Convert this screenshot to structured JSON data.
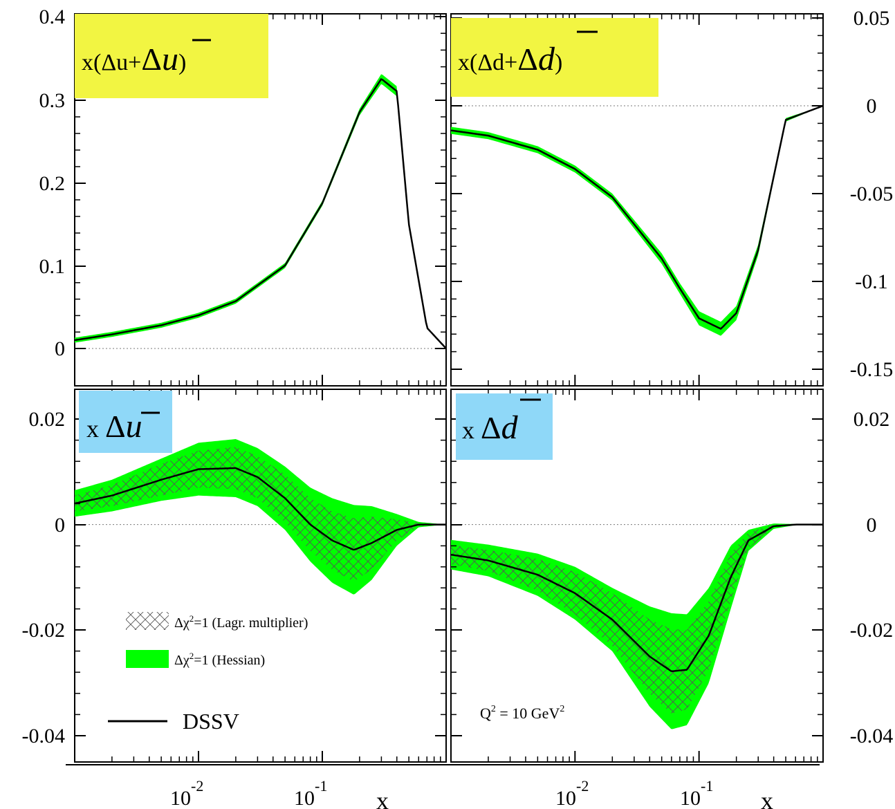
{
  "colors": {
    "hessian_band": "#00ff00",
    "label_yellow": "#f2f542",
    "label_blue": "#8fd8f8",
    "curve": "#000000"
  },
  "legend": {
    "lagr": "Δχ²=1 (Lagr. multiplier)",
    "lagr_prefix": "Δχ",
    "lagr_sup": "2",
    "lagr_suffix": "=1 (Lagr. multiplier)",
    "hess_prefix": "Δχ",
    "hess_sup": "2",
    "hess_suffix": "=1 (Hessian)",
    "dssv": "DSSV"
  },
  "annotation": {
    "q2_prefix": "Q",
    "q2_sup1": "2",
    "q2_mid": " = 10 GeV",
    "q2_sup2": "2"
  },
  "x_axis": {
    "title": "x",
    "tick_10_base": "10",
    "tick_minus2": "-2",
    "tick_minus1": "-1",
    "scale": "log",
    "range": [
      0.001,
      1
    ]
  },
  "chart_data": [
    {
      "type": "line",
      "panel": "top-left",
      "label": "x(Δu+Δū)",
      "label_parts": {
        "pre": "x(Δu+",
        "delta": "Δ",
        "q": "u",
        "post": ")"
      },
      "y_ticks": [
        "0.4",
        "0.3",
        "0.2",
        "0.1",
        "0"
      ],
      "ylim": [
        -0.045,
        0.4
      ],
      "x_scale": "log",
      "series": [
        {
          "name": "DSSV",
          "x": [
            0.001,
            0.002,
            0.005,
            0.01,
            0.02,
            0.05,
            0.1,
            0.2,
            0.3,
            0.4,
            0.5,
            0.7,
            1.0
          ],
          "y": [
            0.01,
            0.017,
            0.028,
            0.04,
            0.057,
            0.1,
            0.175,
            0.285,
            0.325,
            0.31,
            0.15,
            0.025,
            0.0
          ]
        }
      ],
      "band_halfwidth": [
        0.003,
        0.003,
        0.003,
        0.003,
        0.003,
        0.003,
        0.003,
        0.004,
        0.006,
        0.006,
        0.004,
        0.001,
        0.0
      ]
    },
    {
      "type": "line",
      "panel": "top-right",
      "label": "x(Δd+Δd̄)",
      "label_parts": {
        "pre": "x(Δd+",
        "delta": "Δ",
        "q": "d",
        "post": ")"
      },
      "y_ticks": [
        "0.05",
        "0",
        "-0.05",
        "-0.1",
        "-0.15"
      ],
      "ylim": [
        -0.155,
        0.05
      ],
      "x_scale": "log",
      "series": [
        {
          "name": "DSSV",
          "x": [
            0.001,
            0.002,
            0.005,
            0.01,
            0.02,
            0.05,
            0.07,
            0.1,
            0.15,
            0.2,
            0.3,
            0.5,
            1.0
          ],
          "y": [
            -0.014,
            -0.017,
            -0.025,
            -0.036,
            -0.052,
            -0.087,
            -0.104,
            -0.121,
            -0.127,
            -0.118,
            -0.082,
            -0.008,
            0.0
          ]
        }
      ],
      "band_halfwidth": [
        0.002,
        0.002,
        0.002,
        0.002,
        0.002,
        0.003,
        0.003,
        0.004,
        0.004,
        0.004,
        0.003,
        0.001,
        0.0
      ]
    },
    {
      "type": "line",
      "panel": "bottom-left",
      "label": "x Δū",
      "label_parts": {
        "pre": "x ",
        "delta": "Δ",
        "q": "u"
      },
      "y_ticks": [
        "0.02",
        "0",
        "-0.02",
        "-0.04"
      ],
      "ylim": [
        -0.045,
        0.025
      ],
      "x_scale": "log",
      "series": [
        {
          "name": "DSSV",
          "x": [
            0.001,
            0.002,
            0.005,
            0.01,
            0.02,
            0.03,
            0.05,
            0.08,
            0.12,
            0.18,
            0.25,
            0.4,
            0.6,
            1.0
          ],
          "y": [
            0.004,
            0.0055,
            0.0085,
            0.0105,
            0.0107,
            0.009,
            0.005,
            0.0,
            -0.003,
            -0.0048,
            -0.0035,
            -0.001,
            0.0,
            0.0
          ]
        }
      ],
      "band_halfwidth": [
        0.0025,
        0.003,
        0.004,
        0.005,
        0.0055,
        0.0055,
        0.006,
        0.007,
        0.008,
        0.0085,
        0.007,
        0.003,
        0.0005,
        0.0
      ],
      "hatch_halfwidth": [
        0.0015,
        0.002,
        0.003,
        0.0035,
        0.004,
        0.004,
        0.0045,
        0.005,
        0.0055,
        0.006,
        0.005,
        0.002,
        0.0003,
        0.0
      ]
    },
    {
      "type": "line",
      "panel": "bottom-right",
      "label": "x Δd̄",
      "label_parts": {
        "pre": "x ",
        "delta": "Δ",
        "q": "d"
      },
      "y_ticks": [
        "0.02",
        "0",
        "-0.02",
        "-0.04"
      ],
      "ylim": [
        -0.045,
        0.025
      ],
      "x_scale": "log",
      "series": [
        {
          "name": "DSSV",
          "x": [
            0.001,
            0.002,
            0.005,
            0.01,
            0.02,
            0.04,
            0.06,
            0.08,
            0.12,
            0.18,
            0.25,
            0.4,
            0.6,
            1.0
          ],
          "y": [
            -0.0057,
            -0.0068,
            -0.0095,
            -0.013,
            -0.018,
            -0.025,
            -0.0278,
            -0.0275,
            -0.021,
            -0.01,
            -0.003,
            -0.0003,
            0.0,
            0.0
          ]
        }
      ],
      "band_halfwidth": [
        0.0028,
        0.003,
        0.004,
        0.005,
        0.006,
        0.0095,
        0.011,
        0.0105,
        0.009,
        0.006,
        0.002,
        0.0005,
        0.0001,
        0.0
      ],
      "hatch_halfwidth": [
        0.0018,
        0.002,
        0.003,
        0.004,
        0.005,
        0.007,
        0.008,
        0.0075,
        0.0065,
        0.0045,
        0.0015,
        0.0003,
        0.0,
        0.0
      ]
    }
  ]
}
